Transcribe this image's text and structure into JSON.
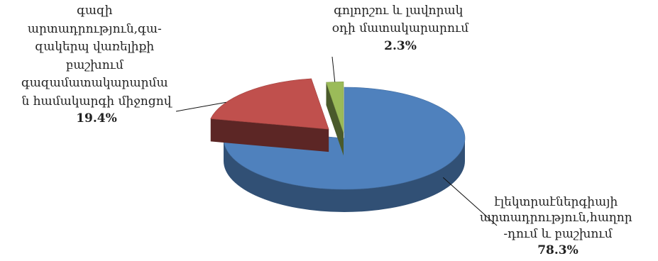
{
  "chart_data": {
    "type": "pie",
    "style": "3d-exploded",
    "slices": [
      {
        "label_lines": [
          "էլեկտրաէներգիայի",
          "արտադրություն,հաղոր",
          "-դում և բաշխում"
        ],
        "value": 78.3,
        "value_label": "78.3%",
        "color": "#4f81bd"
      },
      {
        "label_lines": [
          "գազի",
          "արտադրություն,գա-",
          "զակերպ վառելիքի",
          "բաշխում",
          "գազամատակարարմա",
          "ն համակարգի միջոցով"
        ],
        "value": 19.4,
        "value_label": "19.4%",
        "color": "#c0504d"
      },
      {
        "label_lines": [
          "գոլորշու և լավորակ",
          "օդի մատակարարում"
        ],
        "value": 2.3,
        "value_label": "2.3%",
        "color": "#9bbb59"
      }
    ]
  }
}
